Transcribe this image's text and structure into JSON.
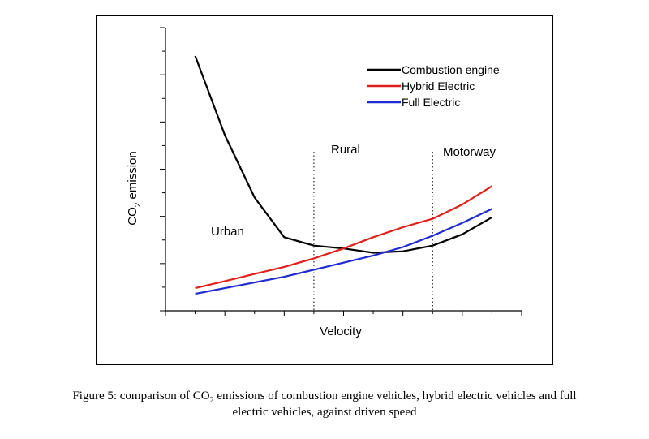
{
  "chart_data": {
    "type": "line",
    "xlabel": "Velocity",
    "ylabel_prefix": "CO",
    "ylabel_sub": "2",
    "ylabel_suffix": " emission",
    "grid": false,
    "legend_position": "top-right",
    "x": [
      1,
      2,
      3,
      4,
      5,
      6,
      7,
      8,
      9,
      10,
      11
    ],
    "xlim": [
      0,
      12
    ],
    "ylim": [
      0,
      100
    ],
    "series": [
      {
        "name": "Combustion engine",
        "color": "#000000",
        "values": [
          90,
          62,
          40,
          26,
          23,
          22,
          20.5,
          21,
          23,
          27,
          33
        ]
      },
      {
        "name": "Hybrid Electric",
        "color": "#e0201b",
        "values": [
          8,
          10.5,
          13,
          15.5,
          18.5,
          22,
          26,
          29.5,
          32.5,
          37.5,
          44
        ]
      },
      {
        "name": "Full Electric",
        "color": "#1f2bd0",
        "values": [
          6,
          8,
          10,
          12,
          14.5,
          17,
          19.5,
          22.5,
          26.5,
          31,
          36
        ]
      }
    ],
    "regions": [
      {
        "label": "Urban"
      },
      {
        "label": "Rural"
      },
      {
        "label": "Motorway"
      }
    ],
    "dividers_x": [
      5,
      9
    ]
  },
  "caption": {
    "line1_pre": "Figure 5: comparison of CO",
    "line1_sub": "2",
    "line1_post": " emissions of combustion engine vehicles, hybrid electric vehicles and full",
    "line2": "electric vehicles, against driven speed"
  }
}
